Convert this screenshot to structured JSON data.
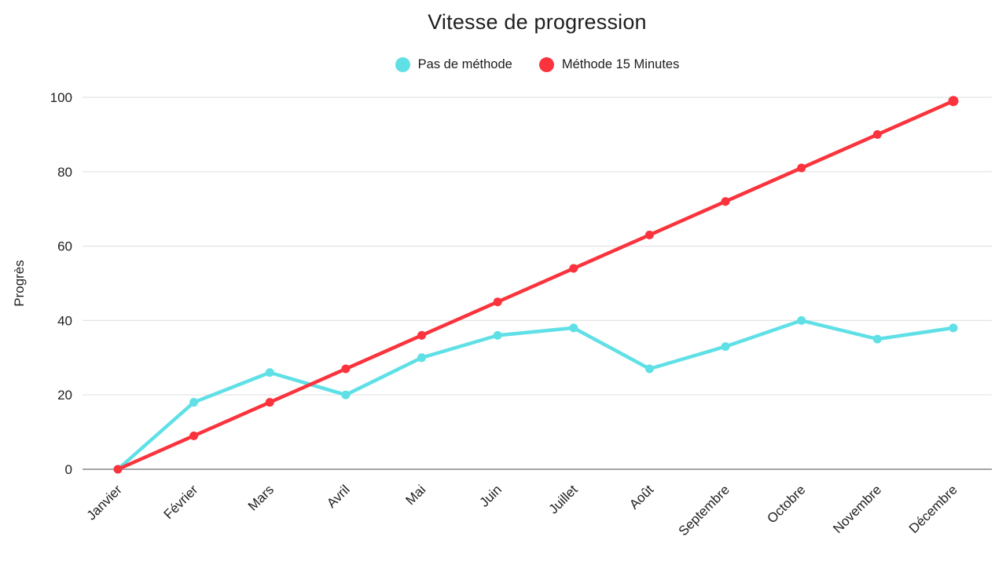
{
  "chart_data": {
    "type": "line",
    "title": "Vitesse de progression",
    "xlabel": "",
    "ylabel": "Progrès",
    "ylim": [
      0,
      100
    ],
    "yticks": [
      0,
      20,
      40,
      60,
      80,
      100
    ],
    "grid": "horizontal",
    "legend_position": "top",
    "categories": [
      "Janvier",
      "Février",
      "Mars",
      "Avril",
      "Mai",
      "Juin",
      "Juillet",
      "Août",
      "Septembre",
      "Octobre",
      "Novembre",
      "Décembre"
    ],
    "series": [
      {
        "name": "Pas de méthode",
        "color": "#5FE0E6",
        "values": [
          0,
          18,
          26,
          20,
          30,
          36,
          38,
          27,
          33,
          40,
          35,
          38
        ]
      },
      {
        "name": "Méthode 15 Minutes",
        "color": "#FA333C",
        "values": [
          0,
          9,
          18,
          27,
          36,
          45,
          54,
          63,
          72,
          81,
          90,
          99
        ]
      }
    ],
    "colors": {
      "gridline": "#e3e3e3",
      "zero_line": "#a5a5a5",
      "text": "#1f1f1f",
      "background": "#ffffff"
    }
  }
}
